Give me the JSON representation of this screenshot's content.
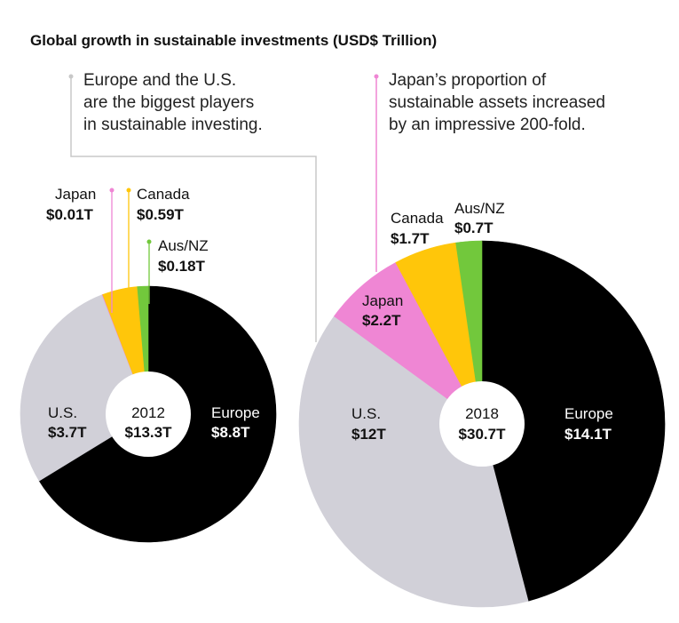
{
  "title": "Global growth in sustainable investments (USD$ Trillion)",
  "annotations": [
    {
      "lines": [
        "Europe and the U.S.",
        "are the biggest players",
        "in sustainable investing."
      ]
    },
    {
      "lines": [
        "Japan’s proportion of",
        "sustainable assets increased",
        "by an impressive 200-fold."
      ]
    }
  ],
  "colors": {
    "Europe": "#000000",
    "U.S.": "#d1d0d8",
    "Japan": "#ef86d4",
    "Canada": "#ffc60a",
    "Aus/NZ": "#72c83c"
  },
  "chart_data": [
    {
      "type": "pie",
      "year": "2012",
      "total_label": "$13.3T",
      "slices": [
        {
          "name": "Europe",
          "value": 8.8,
          "label": "$8.8T"
        },
        {
          "name": "U.S.",
          "value": 3.7,
          "label": "$3.7T"
        },
        {
          "name": "Japan",
          "value": 0.01,
          "label": "$0.01T"
        },
        {
          "name": "Canada",
          "value": 0.59,
          "label": "$0.59T"
        },
        {
          "name": "Aus/NZ",
          "value": 0.18,
          "label": "$0.18T"
        }
      ]
    },
    {
      "type": "pie",
      "year": "2018",
      "total_label": "$30.7T",
      "slices": [
        {
          "name": "Europe",
          "value": 14.1,
          "label": "$14.1T"
        },
        {
          "name": "U.S.",
          "value": 12,
          "label": "$12T"
        },
        {
          "name": "Japan",
          "value": 2.2,
          "label": "$2.2T"
        },
        {
          "name": "Canada",
          "value": 1.7,
          "label": "$1.7T"
        },
        {
          "name": "Aus/NZ",
          "value": 0.7,
          "label": "$0.7T"
        }
      ]
    }
  ]
}
